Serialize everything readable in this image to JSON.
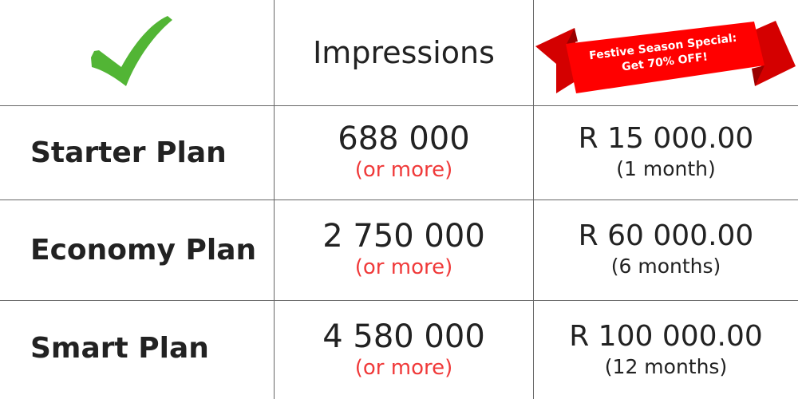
{
  "header": {
    "check_icon": "checkmark-icon",
    "impressions_label": "Impressions",
    "promo": {
      "line1": "Festive Season Special:",
      "line2": "Get 70% OFF!"
    }
  },
  "rows": [
    {
      "plan": "Starter Plan",
      "impressions": "688 000",
      "impressions_note": "(or more)",
      "price": "R 15 000.00",
      "duration": "(1 month)"
    },
    {
      "plan": "Economy Plan",
      "impressions": "2 750 000",
      "impressions_note": "(or more)",
      "price": "R 60 000.00",
      "duration": "(6 months)"
    },
    {
      "plan": "Smart Plan",
      "impressions": "4 580 000",
      "impressions_note": "(or more)",
      "price": "R 100 000.00",
      "duration": "(12 months)"
    }
  ],
  "colors": {
    "check": "#52b535",
    "ribbon": "#ff0000",
    "note": "#f03a3a",
    "grid": "#666666"
  }
}
